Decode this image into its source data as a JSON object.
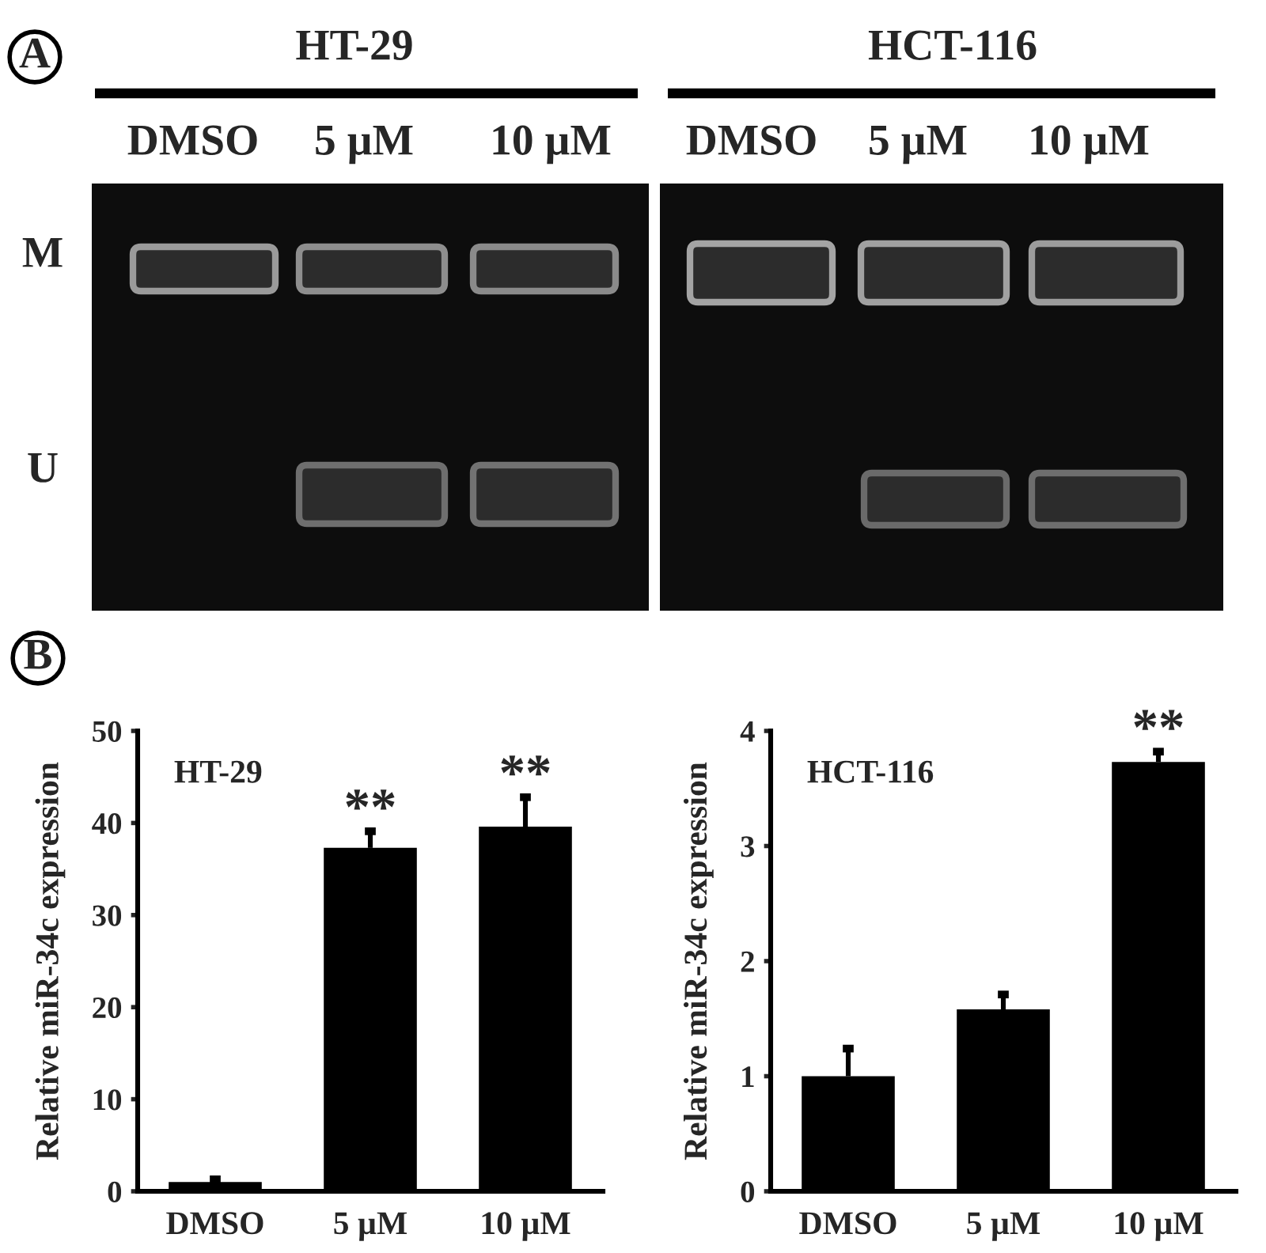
{
  "chart_data": [
    {
      "type": "other",
      "annotations": [
        "A",
        "HT-29",
        "HCT-116",
        "DMSO",
        "5 µM",
        "10 µM",
        "DMSO",
        "5 µM",
        "10 µM",
        "M",
        "U"
      ]
    },
    {
      "type": "bar",
      "title": "HT-29",
      "ylabel": "Relative miR-34c expression",
      "categories": [
        "DMSO",
        "5 µM",
        "10 µM"
      ],
      "values": [
        1.0,
        37.3,
        39.6
      ],
      "errors": [
        [
          1.0,
          1.3
        ],
        [
          37.3,
          39.1
        ],
        [
          39.6,
          42.8
        ]
      ],
      "color": "#000000",
      "ylim": [
        0,
        50
      ],
      "yticks": [
        0,
        10,
        20,
        30,
        40,
        50
      ],
      "annotations": [
        "B",
        {
          "text": "**",
          "x": "5 µM",
          "y": 39.1
        },
        {
          "text": "**",
          "x": "10 µM",
          "y": 42.8
        }
      ]
    },
    {
      "type": "bar",
      "title": "HCT-116",
      "ylabel": "Relative miR-34c expression",
      "categories": [
        "DMSO",
        "5 µM",
        "10 µM"
      ],
      "values": [
        1.0,
        1.58,
        3.73
      ],
      "errors": [
        [
          1.0,
          1.24
        ],
        [
          1.58,
          1.71
        ],
        [
          3.73,
          3.82
        ]
      ],
      "color": "#000000",
      "ylim": [
        0,
        4
      ],
      "yticks": [
        0,
        1,
        2,
        3,
        4
      ],
      "annotations": [
        {
          "text": "**",
          "x": "10 µM",
          "y": 3.82
        }
      ]
    }
  ]
}
